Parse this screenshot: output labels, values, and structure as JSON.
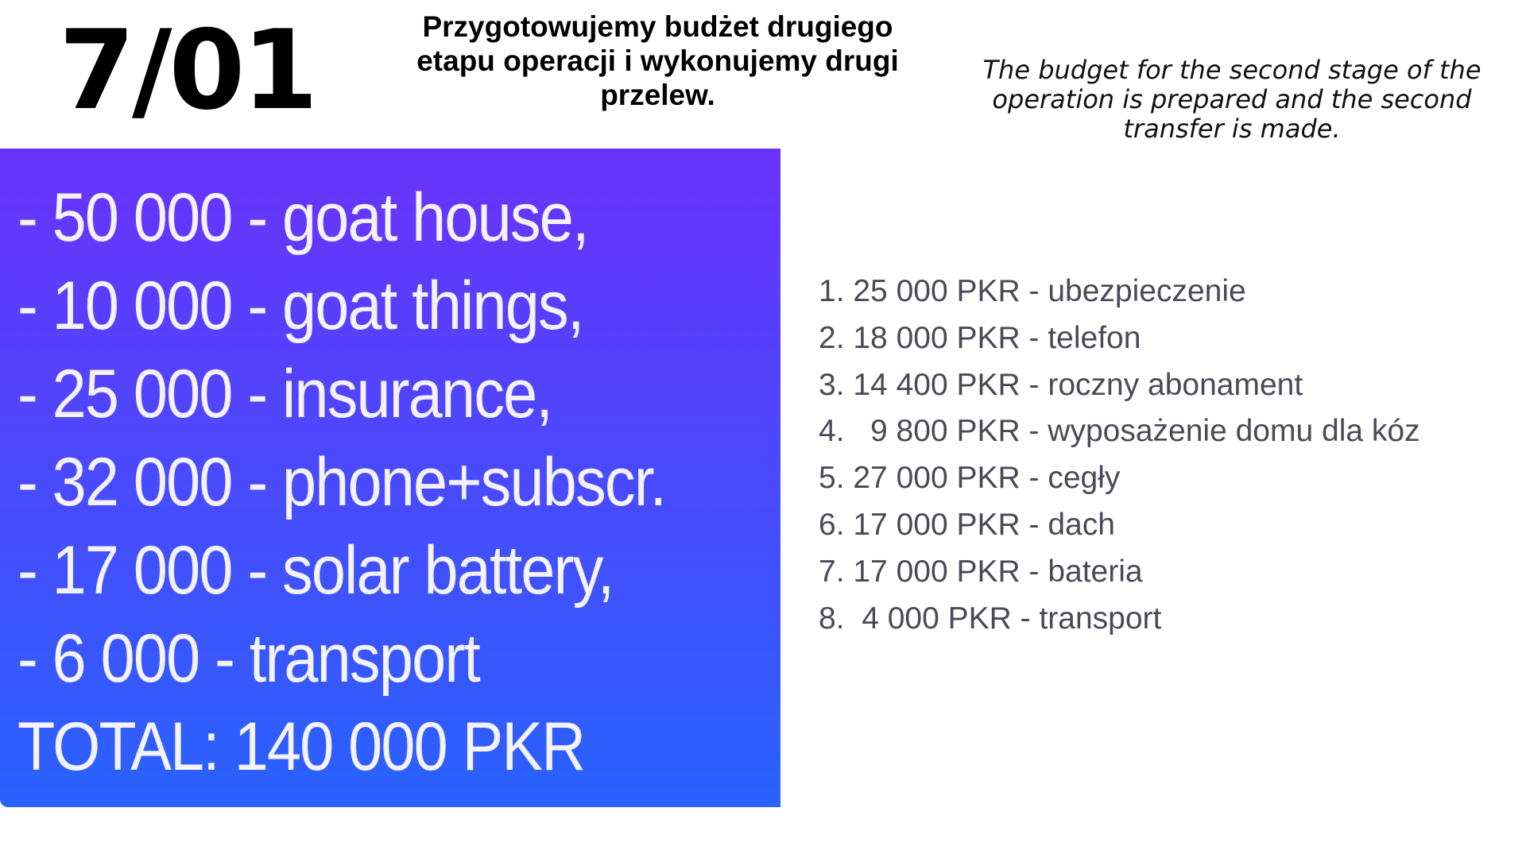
{
  "header": {
    "date": "7/01",
    "title_pl": [
      "Przygotowujemy budżet drugiego",
      "etapu operacji  i wykonujemy drugi",
      "przelew."
    ],
    "title_en": [
      "The budget for the second stage of the",
      "operation is prepared and the second",
      "transfer is made."
    ]
  },
  "budget_box": {
    "colors": {
      "top": "#6a32fc",
      "bottom": "#2962ff",
      "text": "#ffffff"
    },
    "lines": [
      "- 50 000 - goat house,",
      "- 10 000 - goat things,",
      "- 25 000 - insurance,",
      "- 32 000 - phone+subscr.",
      "- 17 000 - solar battery,",
      "- 6 000 - transport",
      "TOTAL: 140 000 PKR"
    ]
  },
  "transfer_list": {
    "items": [
      "1. 25 000 PKR - ubezpieczenie",
      "2. 18 000 PKR - telefon",
      "3. 14 400 PKR - roczny abonament",
      "4.   9 800 PKR - wyposażenie domu dla kóz",
      "5. 27 000 PKR - cegły",
      "6. 17 000 PKR - dach",
      "7. 17 000 PKR - bateria",
      "8.  4 000 PKR - transport"
    ]
  }
}
